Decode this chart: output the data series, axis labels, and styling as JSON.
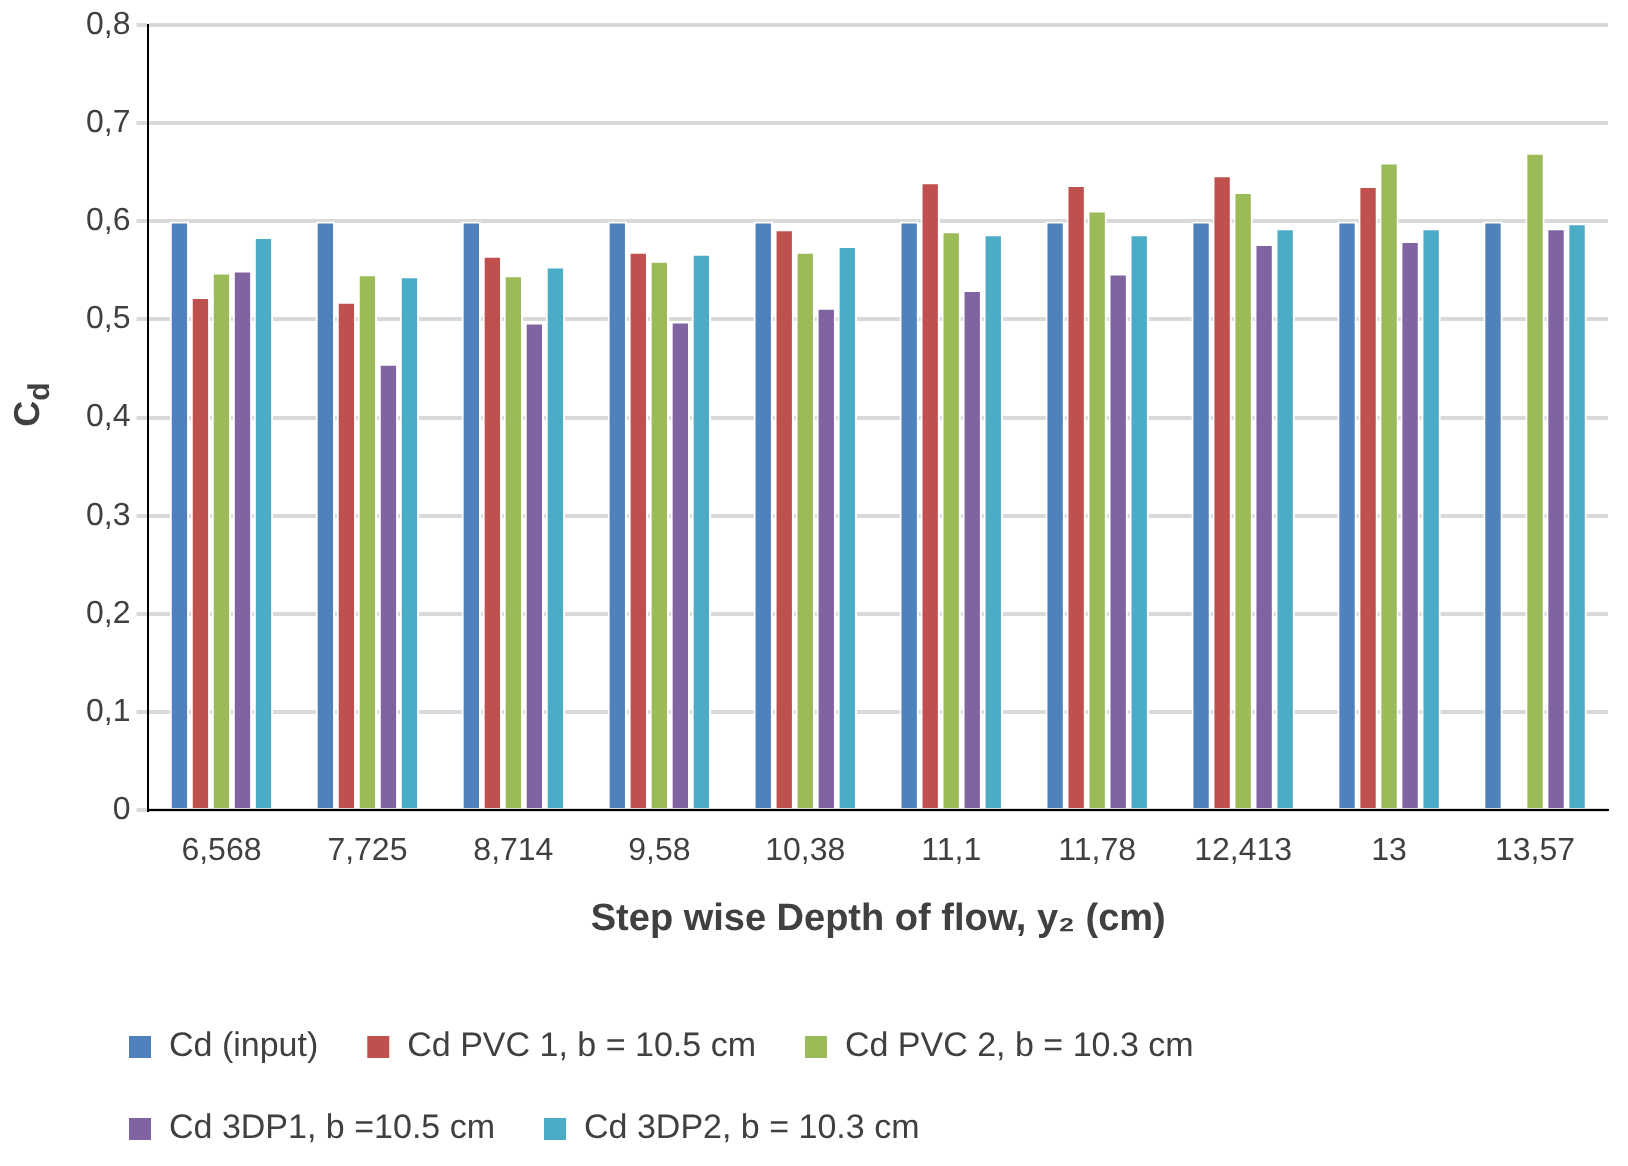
{
  "chart_data": {
    "type": "bar",
    "xlabel": "Step wise Depth of flow, y₂ (cm)",
    "ylabel": "C$_{d}$",
    "categories": [
      "6,568",
      "7,725",
      "8,714",
      "9,58",
      "10,38",
      "11,1",
      "11,78",
      "12,413",
      "13",
      "13,57"
    ],
    "series": [
      {
        "name": "Cd (input)",
        "color": "#4f81bd",
        "values": [
          0.6,
          0.6,
          0.6,
          0.6,
          0.6,
          0.6,
          0.6,
          0.6,
          0.6,
          0.6
        ]
      },
      {
        "name": "Cd PVC 1, b = 10.5 cm",
        "color": "#c0504d",
        "values": [
          0.523,
          0.518,
          0.565,
          0.569,
          0.592,
          0.64,
          0.637,
          0.647,
          0.636,
          null
        ]
      },
      {
        "name": "Cd PVC 2, b = 10.3 cm",
        "color": "#9bbb59",
        "values": [
          0.548,
          0.546,
          0.545,
          0.56,
          0.569,
          0.59,
          0.611,
          0.63,
          0.66,
          0.67
        ]
      },
      {
        "name": "Cd 3DP1, b =10.5 cm",
        "color": "#8064a2",
        "values": [
          0.55,
          0.455,
          0.497,
          0.498,
          0.512,
          0.53,
          0.547,
          0.577,
          0.58,
          0.593
        ]
      },
      {
        "name": "Cd 3DP2, b = 10.3 cm",
        "color": "#4bacc6",
        "values": [
          0.584,
          0.544,
          0.554,
          0.567,
          0.575,
          0.587,
          0.587,
          0.593,
          0.593,
          0.598
        ]
      }
    ],
    "ylim": [
      0,
      0.8
    ],
    "yticks": [
      0,
      {
        "value": 0.1,
        "label": "0,1"
      },
      {
        "value": 0.2,
        "label": "0,2"
      },
      {
        "value": 0.3,
        "label": "0,3"
      },
      {
        "value": 0.4,
        "label": "0,4"
      },
      {
        "value": 0.5,
        "label": "0,5"
      },
      {
        "value": 0.6,
        "label": "0,6"
      },
      {
        "value": 0.7,
        "label": "0,7"
      },
      {
        "value": 0.8,
        "label": "0,8"
      }
    ],
    "grid": "y",
    "legend": "bottom"
  }
}
